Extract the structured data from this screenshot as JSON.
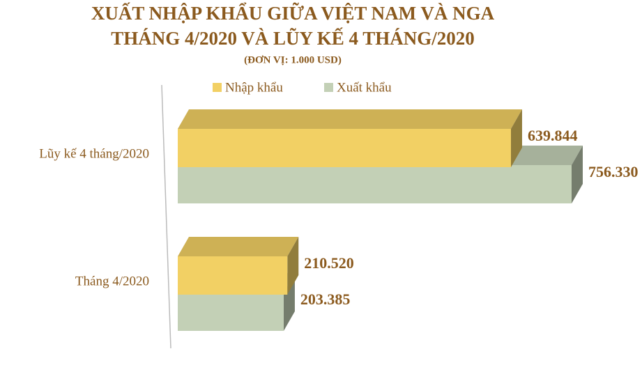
{
  "chart_data": {
    "type": "bar",
    "orientation": "horizontal",
    "title": [
      "XUẤT NHẬP KHẨU GIỮA VIỆT NAM VÀ NGA",
      "THÁNG 4/2020 VÀ LŨY KẾ 4 THÁNG/2020"
    ],
    "subtitle": "(ĐƠN VỊ: 1.000 USD)",
    "categories": [
      "Lũy kế 4 tháng/2020",
      "Tháng 4/2020"
    ],
    "series": [
      {
        "name": "Nhập khẩu",
        "color": "#f2d064",
        "values": [
          639844,
          210520
        ],
        "value_labels": [
          "639.844",
          "210.520"
        ]
      },
      {
        "name": "Xuất khẩu",
        "color": "#c3d0b6",
        "values": [
          756330,
          203385
        ],
        "value_labels": [
          "756.330",
          "203.385"
        ]
      }
    ],
    "legend": "top"
  }
}
